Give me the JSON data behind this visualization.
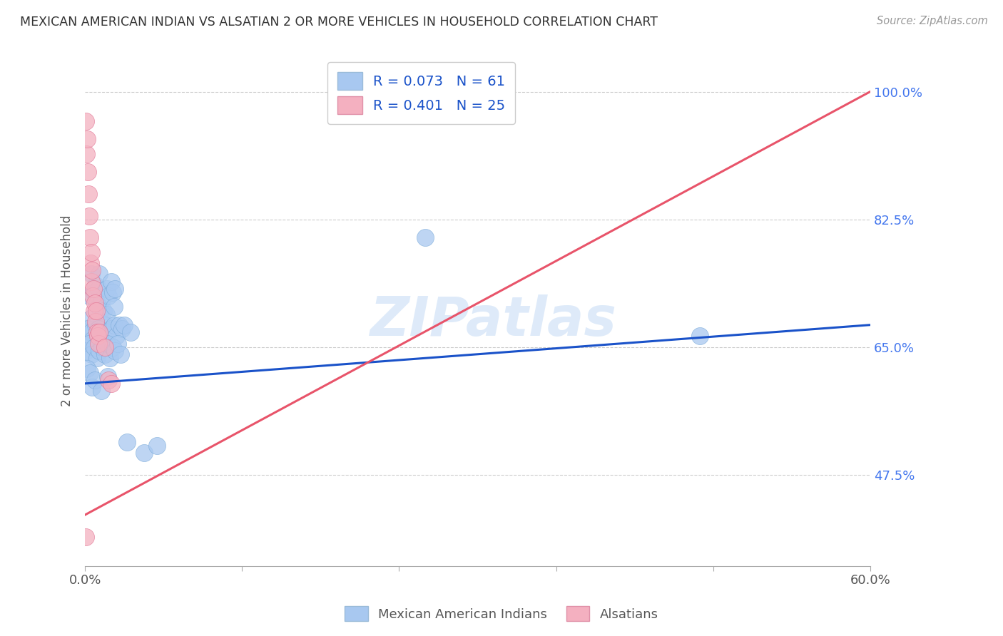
{
  "title": "MEXICAN AMERICAN INDIAN VS ALSATIAN 2 OR MORE VEHICLES IN HOUSEHOLD CORRELATION CHART",
  "source": "Source: ZipAtlas.com",
  "ylabel_label": "2 or more Vehicles in Household",
  "ylabel_ticks": [
    47.5,
    65.0,
    82.5,
    100.0
  ],
  "xmin": 0.0,
  "xmax": 60.0,
  "ymin": 35.0,
  "ymax": 105.0,
  "blue_R": 0.073,
  "blue_N": 61,
  "pink_R": 0.401,
  "pink_N": 25,
  "blue_color": "#a8c8f0",
  "blue_edge_color": "#7aaad8",
  "blue_line_color": "#1a52c9",
  "pink_color": "#f4b0c0",
  "pink_edge_color": "#e07090",
  "pink_line_color": "#e8546a",
  "legend_blue_label": "Mexican American Indians",
  "legend_pink_label": "Alsatians",
  "watermark": "ZIPatlas",
  "blue_dots": [
    [
      0.3,
      72.0
    ],
    [
      0.5,
      75.0
    ],
    [
      0.5,
      69.0
    ],
    [
      0.7,
      72.5
    ],
    [
      0.8,
      73.5
    ],
    [
      0.9,
      71.0
    ],
    [
      1.0,
      73.0
    ],
    [
      1.0,
      70.5
    ],
    [
      1.1,
      75.0
    ],
    [
      1.2,
      70.0
    ],
    [
      1.3,
      71.5
    ],
    [
      1.4,
      70.0
    ],
    [
      1.5,
      68.0
    ],
    [
      1.6,
      69.5
    ],
    [
      1.7,
      73.0
    ],
    [
      1.8,
      72.0
    ],
    [
      2.0,
      74.0
    ],
    [
      2.1,
      72.5
    ],
    [
      2.2,
      70.5
    ],
    [
      2.3,
      73.0
    ],
    [
      0.2,
      67.5
    ],
    [
      0.4,
      67.0
    ],
    [
      0.6,
      66.0
    ],
    [
      0.8,
      68.0
    ],
    [
      1.0,
      67.5
    ],
    [
      1.2,
      66.5
    ],
    [
      1.4,
      67.0
    ],
    [
      1.6,
      65.5
    ],
    [
      1.8,
      67.0
    ],
    [
      2.0,
      67.5
    ],
    [
      2.2,
      68.0
    ],
    [
      2.4,
      66.5
    ],
    [
      2.6,
      68.0
    ],
    [
      2.8,
      67.5
    ],
    [
      3.0,
      68.0
    ],
    [
      0.1,
      64.5
    ],
    [
      0.3,
      65.5
    ],
    [
      0.5,
      64.0
    ],
    [
      0.7,
      65.0
    ],
    [
      0.9,
      63.5
    ],
    [
      1.1,
      64.5
    ],
    [
      1.3,
      65.0
    ],
    [
      1.5,
      64.0
    ],
    [
      1.7,
      65.5
    ],
    [
      1.9,
      63.5
    ],
    [
      2.1,
      65.0
    ],
    [
      2.3,
      64.5
    ],
    [
      2.5,
      65.5
    ],
    [
      2.7,
      64.0
    ],
    [
      3.5,
      67.0
    ],
    [
      0.15,
      62.0
    ],
    [
      0.35,
      61.5
    ],
    [
      0.55,
      59.5
    ],
    [
      0.75,
      60.5
    ],
    [
      1.25,
      59.0
    ],
    [
      1.75,
      61.0
    ],
    [
      3.2,
      52.0
    ],
    [
      4.5,
      50.5
    ],
    [
      5.5,
      51.5
    ],
    [
      26.0,
      80.0
    ],
    [
      47.0,
      66.5
    ]
  ],
  "pink_dots": [
    [
      0.05,
      96.0
    ],
    [
      0.1,
      91.5
    ],
    [
      0.15,
      93.5
    ],
    [
      0.2,
      89.0
    ],
    [
      0.25,
      86.0
    ],
    [
      0.3,
      83.0
    ],
    [
      0.35,
      80.0
    ],
    [
      0.4,
      76.5
    ],
    [
      0.45,
      78.0
    ],
    [
      0.5,
      74.0
    ],
    [
      0.55,
      75.5
    ],
    [
      0.6,
      72.0
    ],
    [
      0.65,
      73.0
    ],
    [
      0.7,
      70.0
    ],
    [
      0.75,
      71.0
    ],
    [
      0.8,
      68.5
    ],
    [
      0.85,
      70.0
    ],
    [
      0.9,
      67.0
    ],
    [
      0.95,
      66.5
    ],
    [
      1.0,
      65.5
    ],
    [
      1.1,
      67.0
    ],
    [
      1.5,
      65.0
    ],
    [
      1.8,
      60.5
    ],
    [
      2.0,
      60.0
    ],
    [
      0.05,
      39.0
    ]
  ],
  "blue_trend": [
    0.0,
    60.0,
    63.5,
    68.5
  ],
  "pink_trend": [
    0.0,
    42.0,
    60.0,
    100.0
  ]
}
